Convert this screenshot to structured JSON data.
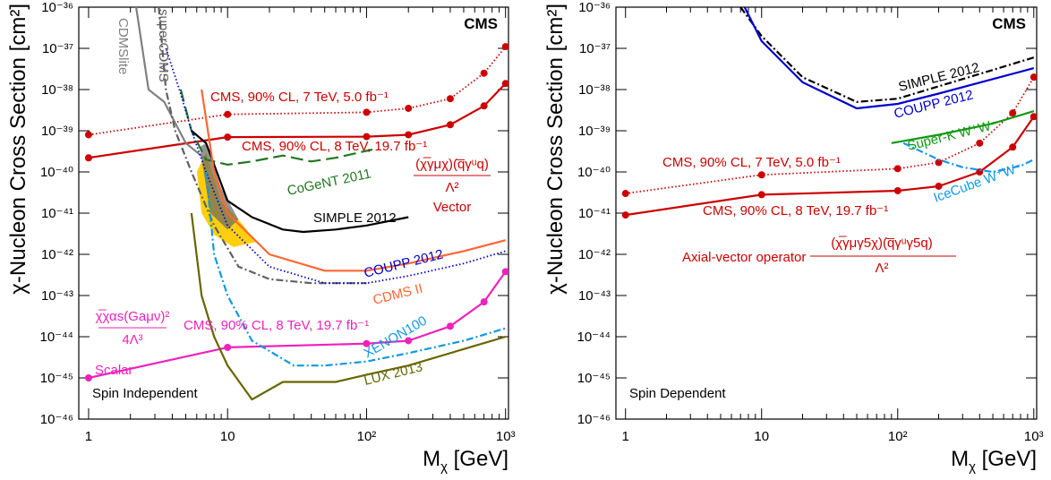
{
  "colors": {
    "cms": "#cc0000",
    "cdmslite": "#808080",
    "supercdms": "#606060",
    "cogent": "#227722",
    "simple": "#000000",
    "coupp": "#0000cc",
    "cdms2": "#ff6633",
    "xenon": "#1199dd",
    "lux": "#666600",
    "scalar": "#ee22bb",
    "superk": "#119911",
    "icecube": "#1199ee",
    "dama": "#ffcc00"
  },
  "chart_data": [
    {
      "type": "line",
      "panel": "left",
      "cms_label": "CMS",
      "xlabel": "M",
      "xlabel_sub": "χ",
      "xlabel_unit": " [GeV]",
      "ylabel": "χ-Nucleon Cross Section [cm²]",
      "xlim": [
        0.85,
        1050
      ],
      "ylim": [
        1e-46,
        1e-36
      ],
      "log_x": true,
      "log_y": true,
      "x_ticks": [
        "1",
        "10",
        "10²",
        "10³"
      ],
      "y_ticks": [
        "10⁻³⁶",
        "10⁻³⁷",
        "10⁻³⁸",
        "10⁻³⁹",
        "10⁻⁴⁰",
        "10⁻⁴¹",
        "10⁻⁴²",
        "10⁻⁴³",
        "10⁻⁴⁴",
        "10⁻⁴⁵",
        "10⁻⁴⁶"
      ],
      "region_label": "Spin Independent",
      "operator_vector": {
        "numerator": "(χ̅γμχ)(q̅γᵘq)",
        "denominator": "Λ²",
        "name": "Vector"
      },
      "operator_scalar": {
        "numerator": "χ̅χαs(Gaμν)²",
        "denominator": "4Λ³",
        "name": "Scalar"
      },
      "series": [
        {
          "name": "CMS, 90% CL, 7 TeV, 5.0 fb⁻¹",
          "style": "dotted",
          "color": "cms",
          "markers": true,
          "x": [
            1,
            10,
            100,
            200,
            400,
            700,
            1000
          ],
          "y": [
            8e-40,
            2.5e-39,
            2.8e-39,
            3.5e-39,
            6e-39,
            2.5e-38,
            1.1e-37
          ]
        },
        {
          "name": "CMS, 90% CL, 8 TeV, 19.7 fb⁻¹",
          "style": "solid",
          "color": "cms",
          "markers": true,
          "x": [
            1,
            10,
            100,
            200,
            400,
            700,
            1000
          ],
          "y": [
            2.2e-40,
            7e-40,
            7.2e-40,
            8e-40,
            1.4e-39,
            4e-39,
            1.4e-38
          ]
        },
        {
          "name": "CMS, 90% CL, 8 TeV, 19.7 fb⁻¹",
          "style": "solid",
          "color": "scalar",
          "markers": true,
          "x": [
            1,
            10,
            100,
            200,
            400,
            700,
            1000
          ],
          "y": [
            1e-45,
            5.5e-45,
            6.8e-45,
            8e-45,
            1.8e-44,
            7e-44,
            3.8e-43
          ]
        },
        {
          "name": "CDMSlite",
          "style": "solid",
          "color": "cdmslite",
          "markers": false,
          "x": [
            2.2,
            2.7,
            3.5,
            5,
            7
          ],
          "y": [
            1e-36,
            1e-38,
            5e-39,
            5e-40,
            2e-40
          ]
        },
        {
          "name": "superCDMS",
          "style": "dashdot",
          "color": "supercdms",
          "markers": false,
          "x": [
            3.2,
            3.6,
            4.2,
            5.5,
            8,
            12,
            20,
            40,
            100
          ],
          "y": [
            1e-36,
            1e-38,
            1e-39,
            1e-40,
            5e-42,
            5e-43,
            2.5e-43,
            2e-43,
            2e-43
          ]
        },
        {
          "name": "CoGeNT 2011",
          "style": "dashed",
          "color": "cogent",
          "markers": false,
          "x": [
            4.6,
            5.5,
            7,
            10,
            15,
            25,
            40,
            60,
            110
          ],
          "y": [
            1e-38,
            1e-39,
            2e-40,
            1.5e-40,
            1.8e-40,
            2.5e-40,
            1.8e-40,
            2.2e-40,
            3.5e-40
          ]
        },
        {
          "name": "SIMPLE 2012",
          "style": "solid",
          "color": "simple",
          "markers": false,
          "x": [
            5.5,
            7,
            10,
            15,
            25,
            35,
            60,
            100,
            200
          ],
          "y": [
            1e-39,
            5e-40,
            2e-41,
            8e-42,
            4e-42,
            3.5e-42,
            4e-42,
            5e-42,
            8e-42
          ]
        },
        {
          "name": "COUPP 2012",
          "style": "dotted",
          "color": "coupp",
          "markers": false,
          "x": [
            3.6,
            4.5,
            5.5,
            7,
            10,
            20,
            50,
            100,
            200,
            500,
            1000
          ],
          "y": [
            1e-37,
            1e-38,
            1e-39,
            1e-40,
            5e-42,
            5e-43,
            2e-43,
            2e-43,
            3e-43,
            6e-43,
            1.2e-42
          ]
        },
        {
          "name": "CDMS II",
          "style": "solid",
          "color": "cdms2",
          "markers": false,
          "x": [
            6.5,
            8,
            10,
            20,
            50,
            100,
            200,
            500,
            1000
          ],
          "y": [
            1e-38,
            1e-40,
            1e-41,
            1e-42,
            4e-43,
            4e-43,
            6e-43,
            1.2e-42,
            2.2e-42
          ]
        },
        {
          "name": "XENON100",
          "style": "dashdot",
          "color": "xenon",
          "markers": false,
          "x": [
            7,
            8,
            10,
            15,
            30,
            50,
            100,
            200,
            500,
            1000
          ],
          "y": [
            1e-40,
            1e-42,
            1e-43,
            8e-45,
            2e-45,
            2e-45,
            2.5e-45,
            4e-45,
            8e-45,
            1.6e-44
          ]
        },
        {
          "name": "LUX 2013",
          "style": "solid",
          "color": "lux",
          "markers": false,
          "x": [
            5.5,
            6.5,
            8,
            10,
            15,
            25,
            35,
            60,
            100,
            200,
            500,
            1000
          ],
          "y": [
            1e-41,
            1e-43,
            1e-44,
            2e-45,
            3e-46,
            8e-46,
            8e-46,
            8e-46,
            1.2e-45,
            2e-45,
            5e-45,
            1e-44
          ]
        }
      ]
    },
    {
      "type": "line",
      "panel": "right",
      "cms_label": "CMS",
      "xlabel": "M",
      "xlabel_sub": "χ",
      "xlabel_unit": " [GeV]",
      "ylabel": "χ-Nucleon Cross Section [cm²]",
      "xlim": [
        0.85,
        1050
      ],
      "ylim": [
        1e-46,
        1e-36
      ],
      "log_x": true,
      "log_y": true,
      "x_ticks": [
        "1",
        "10",
        "10²",
        "10³"
      ],
      "y_ticks": [
        "10⁻³⁶",
        "10⁻³⁷",
        "10⁻³⁸",
        "10⁻³⁹",
        "10⁻⁴⁰",
        "10⁻⁴¹",
        "10⁻⁴²",
        "10⁻⁴³",
        "10⁻⁴⁴",
        "10⁻⁴⁵",
        "10⁻⁴⁶"
      ],
      "region_label": "Spin Dependent",
      "operator_axial": {
        "prefix": "Axial-vector operator",
        "numerator": "(χ̅γμγ5χ)(q̅γᵘγ5q)",
        "denominator": "Λ²"
      },
      "series": [
        {
          "name": "CMS, 90% CL, 7 TeV, 5.0 fb⁻¹",
          "style": "dotted",
          "color": "cms",
          "markers": true,
          "x": [
            1,
            10,
            100,
            200,
            400,
            700,
            1000
          ],
          "y": [
            3e-41,
            8.5e-41,
            1.2e-40,
            1.7e-40,
            5e-40,
            2.7e-39,
            2e-38
          ]
        },
        {
          "name": "CMS, 90% CL, 8 TeV, 19.7 fb⁻¹",
          "style": "solid",
          "color": "cms",
          "markers": true,
          "x": [
            1,
            10,
            100,
            200,
            400,
            700,
            1000
          ],
          "y": [
            9e-42,
            2.8e-41,
            3.5e-41,
            4.5e-41,
            1e-40,
            4e-40,
            2.2e-39
          ]
        },
        {
          "name": "SIMPLE 2012",
          "style": "dashdot",
          "color": "simple",
          "markers": false,
          "x": [
            7,
            10,
            20,
            50,
            100,
            200,
            500,
            1000
          ],
          "y": [
            1e-36,
            2e-37,
            2e-38,
            5e-39,
            6e-39,
            1.2e-38,
            3e-38,
            6e-38
          ]
        },
        {
          "name": "COUPP 2012",
          "style": "solid",
          "color": "coupp",
          "markers": false,
          "x": [
            7.5,
            10,
            20,
            50,
            100,
            200,
            500,
            1000
          ],
          "y": [
            1e-36,
            1.5e-37,
            1.5e-38,
            3.5e-39,
            4.5e-39,
            8e-39,
            1.8e-38,
            3.3e-38
          ]
        },
        {
          "name": "Super-K W⁺W⁻",
          "style": "solid",
          "color": "superk",
          "markers": false,
          "x": [
            90,
            200,
            500,
            1000
          ],
          "y": [
            5e-40,
            8e-40,
            1.5e-39,
            3e-39
          ]
        },
        {
          "name": "IceCube W⁺W⁻",
          "style": "dashdot",
          "color": "icecube",
          "markers": false,
          "x": [
            110,
            200,
            300,
            500,
            800,
            1000
          ],
          "y": [
            5e-40,
            2e-40,
            1.3e-40,
            1e-40,
            1.4e-40,
            2e-40
          ]
        }
      ]
    }
  ]
}
